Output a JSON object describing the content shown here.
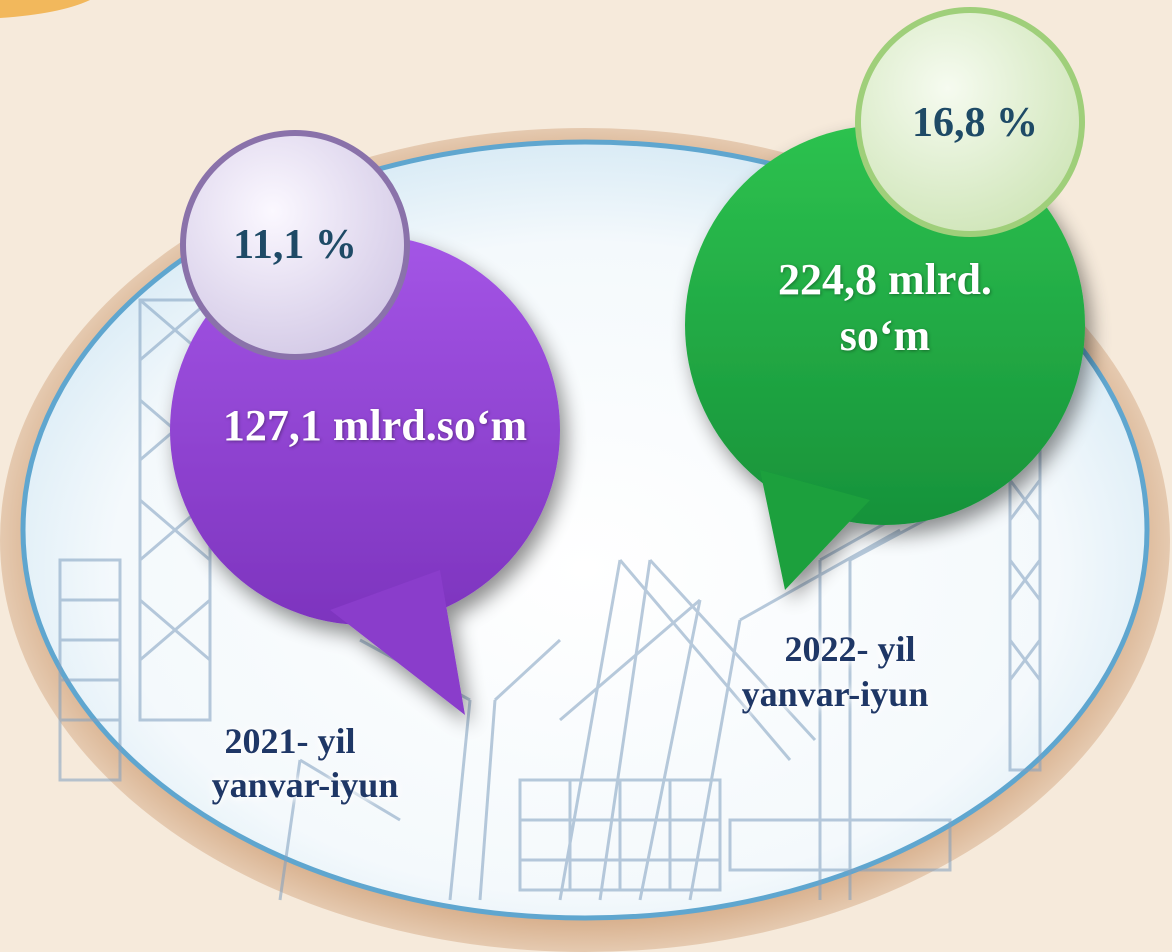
{
  "colors": {
    "background": "#f6eadb",
    "ellipse_rim": "#d1a37c",
    "ellipse_border": "#5fa6cf",
    "purple_bubble": "#8e3fcf",
    "green_bubble": "#1faa3e",
    "percent_text": "#1e4a66",
    "period_text": "#1f3766"
  },
  "left": {
    "amount": "127,1 mlrd.so‘m",
    "percent": "11,1 %",
    "period_line1": "2021- yil",
    "period_line2": "yanvar-iyun"
  },
  "right": {
    "amount_line1": "224,8 mlrd.",
    "amount_line2": "so‘m",
    "percent": "16,8 %",
    "period_line1": "2022- yil",
    "period_line2": "yanvar-iyun"
  }
}
